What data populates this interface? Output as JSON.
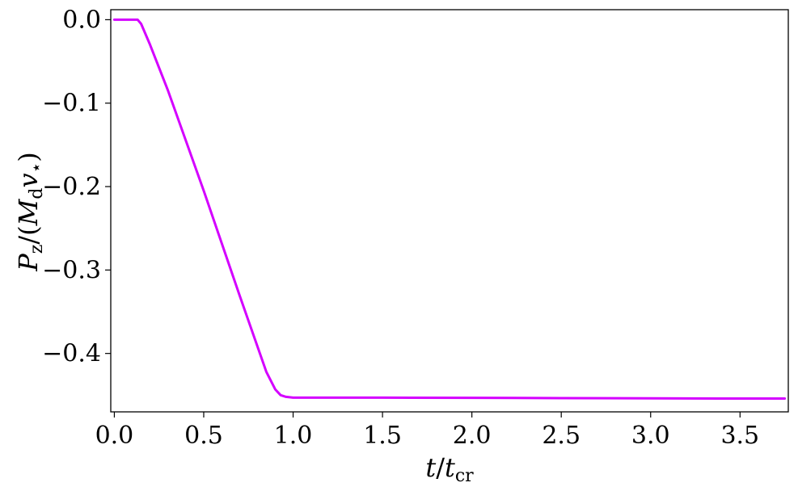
{
  "chart_data": {
    "type": "line",
    "title": "",
    "xlabel": {
      "main": "t",
      "slash": "/",
      "denom": "t",
      "denom_sub": "cr"
    },
    "ylabel": {
      "main": "P",
      "main_sub": "z",
      "slash": "/(",
      "m": "M",
      "m_sub": "d",
      "v": "v",
      "v_sub": "⋆",
      "close": ")"
    },
    "xlim": [
      -0.02,
      3.77
    ],
    "ylim": [
      -0.47,
      0.012
    ],
    "xticks": [
      0.0,
      0.5,
      1.0,
      1.5,
      2.0,
      2.5,
      3.0,
      3.5
    ],
    "xtick_labels": [
      "0.0",
      "0.5",
      "1.0",
      "1.5",
      "2.0",
      "2.5",
      "3.0",
      "3.5"
    ],
    "yticks": [
      0.0,
      -0.1,
      -0.2,
      -0.3,
      -0.4
    ],
    "ytick_labels": [
      "0.0",
      "−0.1",
      "−0.2",
      "−0.3",
      "−0.4"
    ],
    "grid": false,
    "series": [
      {
        "color": "#d400ff",
        "x": [
          0.0,
          0.1,
          0.13,
          0.15,
          0.2,
          0.3,
          0.5,
          0.7,
          0.85,
          0.9,
          0.93,
          0.96,
          1.0,
          1.5,
          2.0,
          2.5,
          3.0,
          3.5,
          3.75
        ],
        "y": [
          0.0,
          0.0,
          0.0,
          -0.005,
          -0.03,
          -0.085,
          -0.205,
          -0.33,
          -0.422,
          -0.443,
          -0.45,
          -0.452,
          -0.453,
          -0.453,
          -0.4532,
          -0.4535,
          -0.4538,
          -0.454,
          -0.454
        ]
      }
    ]
  }
}
